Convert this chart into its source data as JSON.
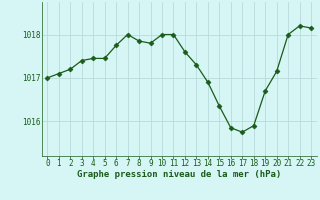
{
  "x": [
    0,
    1,
    2,
    3,
    4,
    5,
    6,
    7,
    8,
    9,
    10,
    11,
    12,
    13,
    14,
    15,
    16,
    17,
    18,
    19,
    20,
    21,
    22,
    23
  ],
  "y": [
    1017.0,
    1017.1,
    1017.2,
    1017.4,
    1017.45,
    1017.45,
    1017.75,
    1018.0,
    1017.85,
    1017.8,
    1018.0,
    1018.0,
    1017.6,
    1017.3,
    1016.9,
    1016.35,
    1015.85,
    1015.75,
    1015.9,
    1016.7,
    1017.15,
    1018.0,
    1018.2,
    1018.15
  ],
  "line_color": "#1a5c1a",
  "marker": "D",
  "marker_size": 2.5,
  "bg_color": "#d6f5f5",
  "grid_color": "#b8dada",
  "xlabel": "Graphe pression niveau de la mer (hPa)",
  "xlabel_fontsize": 6.5,
  "tick_fontsize": 5.5,
  "yticks": [
    1016,
    1017,
    1018
  ],
  "ylim": [
    1015.2,
    1018.75
  ],
  "xlim": [
    -0.5,
    23.5
  ]
}
